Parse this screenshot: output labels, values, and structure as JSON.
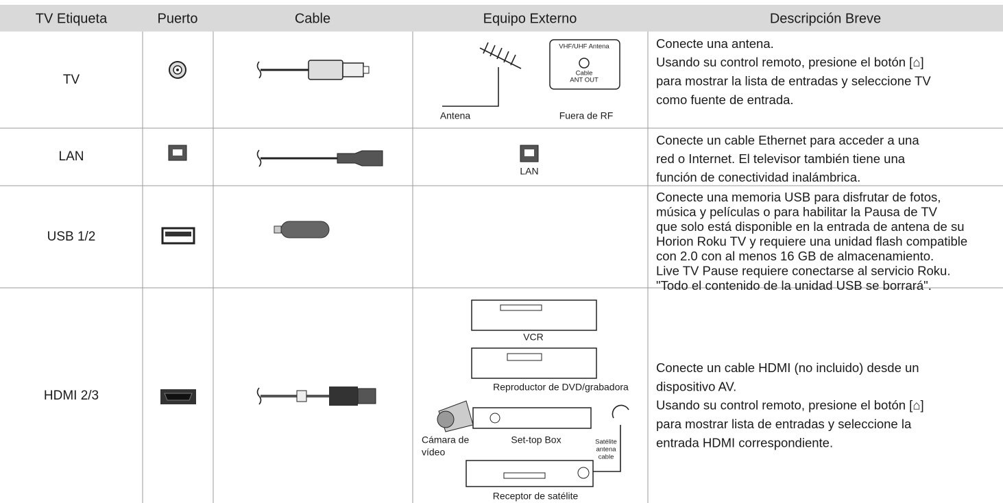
{
  "table": {
    "header": [
      "TV Etiqueta",
      "Puerto",
      "Cable",
      "Equipo Externo",
      "Descripción Breve"
    ],
    "rows": [
      {
        "label": "TV",
        "equipment": [
          "VHF/UHF Antena",
          "Cable",
          "ANT OUT",
          "Antena",
          "Fuera de RF"
        ],
        "description": [
          "Conecte una antena.",
          "Usando su control remoto, presione el botón [⌂]",
          "para mostrar la lista de entradas y seleccione TV",
          "como fuente de entrada."
        ]
      },
      {
        "label": "LAN",
        "equipment": [
          "LAN"
        ],
        "description": [
          "Conecte un cable Ethernet para acceder a una",
          "red o Internet. El televisor también tiene una",
          "función de conectividad inalámbrica."
        ]
      },
      {
        "label": "USB 1/2",
        "description": [
          "Conecte una memoria USB para disfrutar de fotos,",
          "música y películas o para habilitar la Pausa de TV",
          "que solo está disponible en la entrada de antena de su",
          "Horion Roku TV y requiere una unidad flash compatible",
          "con 2.0 con al menos 16 GB de almacenamiento.",
          "Live TV Pause requiere conectarse al servicio Roku.",
          "\"Todo el contenido de la unidad USB se borrará\"."
        ]
      },
      {
        "label": "HDMI 2/3",
        "equipment": [
          "VCR",
          "Reproductor de DVD/grabadora",
          "Cámara de",
          "vídeo",
          "Set-top Box",
          "Satélite",
          "antena",
          "cable",
          "Receptor de satélite"
        ],
        "description": [
          "Conecte un cable HDMI (no incluido) desde un",
          "dispositivo AV.",
          "Usando su control remoto, presione el botón [⌂]",
          "para mostrar lista de entradas y seleccione la",
          "entrada HDMI correspondiente."
        ]
      }
    ]
  }
}
